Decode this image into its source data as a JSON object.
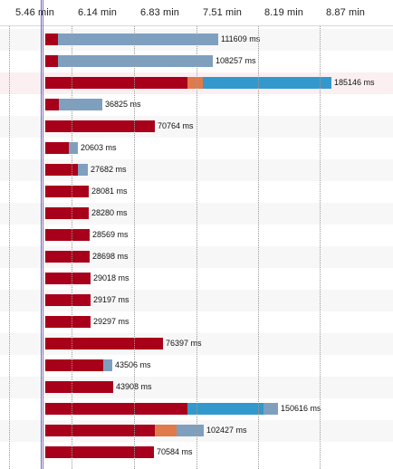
{
  "axis": {
    "ticks": [
      "5.46 min",
      "6.14 min",
      "6.83 min",
      "7.51 min",
      "8.19 min",
      "8.87 min"
    ]
  },
  "colors": {
    "wait": "#a8001a",
    "dns": "#e07a4a",
    "connect": "#3399cc",
    "receive": "#7f9fbf",
    "marker_blue": "#5a6bb3",
    "marker_purple": "#8a6bc8"
  },
  "rows": [
    {
      "label": "111609 ms",
      "segments": [
        {
          "type": "wait",
          "ms": 8000
        },
        {
          "type": "receive",
          "ms": 103609
        }
      ]
    },
    {
      "label": "108257 ms",
      "segments": [
        {
          "type": "wait",
          "ms": 8000
        },
        {
          "type": "receive",
          "ms": 100257
        }
      ]
    },
    {
      "label": "185146 ms",
      "segments": [
        {
          "type": "wait",
          "ms": 92000
        },
        {
          "type": "dns",
          "ms": 10000
        },
        {
          "type": "connect",
          "ms": 83146
        }
      ]
    },
    {
      "label": "36825 ms",
      "segments": [
        {
          "type": "wait",
          "ms": 8500
        },
        {
          "type": "receive",
          "ms": 28325
        }
      ]
    },
    {
      "label": "70764 ms",
      "segments": [
        {
          "type": "wait",
          "ms": 70764
        }
      ]
    },
    {
      "label": "20603 ms",
      "segments": [
        {
          "type": "wait",
          "ms": 15000
        },
        {
          "type": "receive",
          "ms": 5603
        }
      ]
    },
    {
      "label": "27682 ms",
      "segments": [
        {
          "type": "wait",
          "ms": 21000
        },
        {
          "type": "receive",
          "ms": 6682
        }
      ]
    },
    {
      "label": "28081 ms",
      "segments": [
        {
          "type": "wait",
          "ms": 28081
        }
      ]
    },
    {
      "label": "28280 ms",
      "segments": [
        {
          "type": "wait",
          "ms": 28280
        }
      ]
    },
    {
      "label": "28569 ms",
      "segments": [
        {
          "type": "wait",
          "ms": 28569
        }
      ]
    },
    {
      "label": "28698 ms",
      "segments": [
        {
          "type": "wait",
          "ms": 28698
        }
      ]
    },
    {
      "label": "29018 ms",
      "segments": [
        {
          "type": "wait",
          "ms": 29018
        }
      ]
    },
    {
      "label": "29197 ms",
      "segments": [
        {
          "type": "wait",
          "ms": 29197
        }
      ]
    },
    {
      "label": "29297 ms",
      "segments": [
        {
          "type": "wait",
          "ms": 29297
        }
      ]
    },
    {
      "label": "76397 ms",
      "segments": [
        {
          "type": "wait",
          "ms": 76397
        }
      ]
    },
    {
      "label": "43506 ms",
      "segments": [
        {
          "type": "wait",
          "ms": 37500
        },
        {
          "type": "receive",
          "ms": 6006
        }
      ]
    },
    {
      "label": "43908 ms",
      "segments": [
        {
          "type": "wait",
          "ms": 43908
        }
      ]
    },
    {
      "label": "150616 ms",
      "segments": [
        {
          "type": "wait",
          "ms": 92000
        },
        {
          "type": "connect",
          "ms": 49000
        },
        {
          "type": "receive",
          "ms": 9616
        }
      ]
    },
    {
      "label": "102427 ms",
      "segments": [
        {
          "type": "wait",
          "ms": 71000
        },
        {
          "type": "dns",
          "ms": 14000
        },
        {
          "type": "receive",
          "ms": 17427
        }
      ]
    },
    {
      "label": "70584 ms",
      "segments": [
        {
          "type": "wait",
          "ms": 70584
        }
      ]
    }
  ]
}
